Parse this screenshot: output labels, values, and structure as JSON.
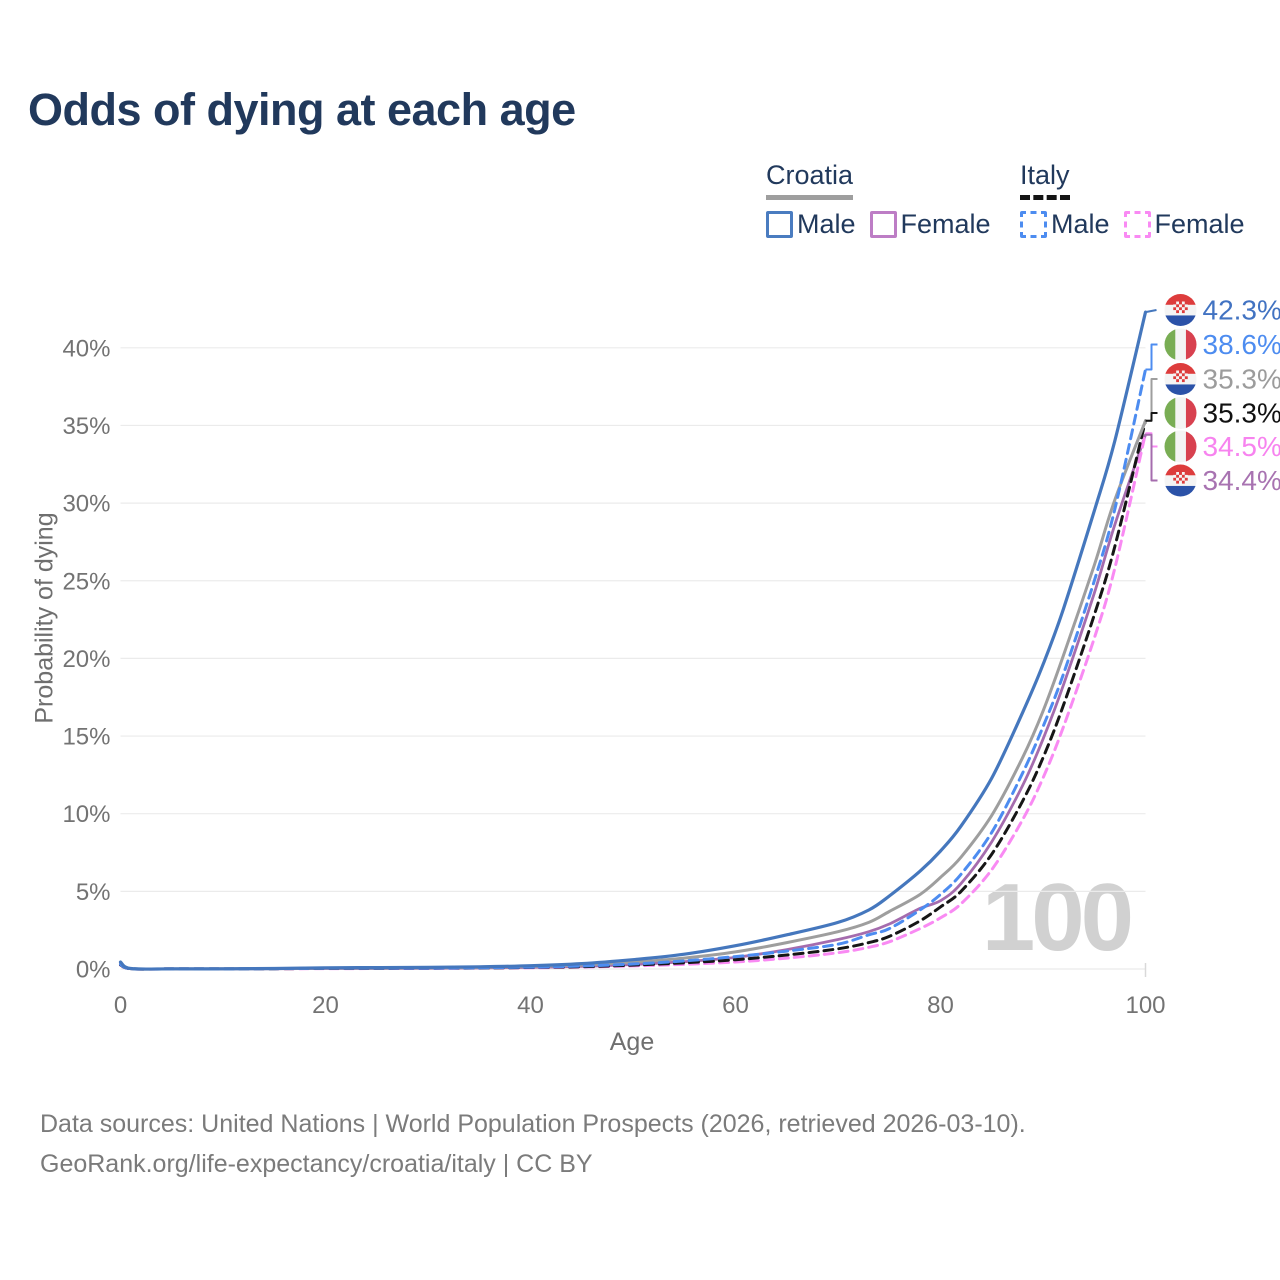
{
  "title": "Odds of dying at each age",
  "watermark": "100",
  "legend": {
    "groups": [
      {
        "country": "Croatia",
        "underline_style": "solid",
        "underline_color": "#9e9e9e",
        "items": [
          {
            "label": "Male",
            "color": "#4a7cc0",
            "dashed": false
          },
          {
            "label": "Female",
            "color": "#bd7dc5",
            "dashed": false
          }
        ]
      },
      {
        "country": "Italy",
        "underline_style": "dashed",
        "underline_color": "#141414",
        "items": [
          {
            "label": "Male",
            "color": "#4d8cf0",
            "dashed": true
          },
          {
            "label": "Female",
            "color": "#f98af3",
            "dashed": true
          }
        ]
      }
    ]
  },
  "footer": {
    "line1": "Data sources: United Nations | World Population Prospects (2026, retrieved 2026-03-10).",
    "line2": "GeoRank.org/life-expectancy/croatia/italy | CC BY"
  },
  "chart_data": {
    "type": "line",
    "title": "Odds of dying at each age",
    "xlabel": "Age",
    "ylabel": "Probability of dying",
    "xlim": [
      0,
      100
    ],
    "ylim": [
      0,
      42.5
    ],
    "x_ticks": [
      0,
      20,
      40,
      60,
      80,
      100
    ],
    "y_ticks": [
      0,
      5,
      10,
      15,
      20,
      25,
      30,
      35,
      40
    ],
    "y_tick_suffix": "%",
    "grid": "horizontal",
    "legend_position": "top-right",
    "age_marker": 100,
    "x": [
      0,
      1,
      5,
      10,
      15,
      20,
      25,
      30,
      35,
      40,
      45,
      50,
      55,
      60,
      65,
      70,
      73,
      75,
      78,
      80,
      82,
      85,
      88,
      90,
      92,
      95,
      97,
      100
    ],
    "series": [
      {
        "name": "Croatia Male",
        "flag": "croatia",
        "color": "#4577bd",
        "dash": null,
        "width": 3.2,
        "end_value": 42.3,
        "end_label": "42.3%",
        "label_color": "#4273c2",
        "values": [
          0.45,
          0.03,
          0.01,
          0.012,
          0.035,
          0.08,
          0.09,
          0.1,
          0.14,
          0.21,
          0.35,
          0.6,
          0.95,
          1.5,
          2.2,
          3.0,
          3.8,
          4.7,
          6.3,
          7.6,
          9.2,
          12.3,
          16.5,
          19.6,
          23.2,
          29.5,
          34.0,
          42.3
        ]
      },
      {
        "name": "Italy Male",
        "flag": "italy",
        "color": "#4d8cf0",
        "dash": "9 6",
        "width": 3,
        "end_value": 38.6,
        "end_label": "38.6%",
        "label_color": "#4d8cf0",
        "values": [
          0.3,
          0.02,
          0.008,
          0.009,
          0.025,
          0.05,
          0.055,
          0.06,
          0.08,
          0.12,
          0.19,
          0.32,
          0.52,
          0.8,
          1.15,
          1.6,
          2.2,
          2.6,
          3.8,
          4.8,
          6.1,
          8.8,
          12.6,
          15.6,
          19.0,
          25.0,
          29.6,
          38.6
        ]
      },
      {
        "name": "Croatia Total",
        "flag": "croatia",
        "color": "#9e9e9e",
        "dash": null,
        "width": 3,
        "end_value": 35.3,
        "end_label": "35.3%",
        "label_color": "#9c9c9c",
        "values": [
          0.42,
          0.025,
          0.009,
          0.01,
          0.028,
          0.055,
          0.06,
          0.07,
          0.1,
          0.16,
          0.26,
          0.44,
          0.7,
          1.1,
          1.7,
          2.4,
          3.0,
          3.7,
          4.8,
          5.9,
          7.2,
          9.9,
          13.6,
          16.6,
          20.2,
          26.0,
          30.2,
          35.3
        ]
      },
      {
        "name": "Italy Total",
        "flag": "italy",
        "color": "#161616",
        "dash": "9 6",
        "width": 3,
        "end_value": 35.3,
        "end_label": "35.3%",
        "label_color": "#111111",
        "values": [
          0.27,
          0.018,
          0.007,
          0.008,
          0.02,
          0.038,
          0.04,
          0.05,
          0.065,
          0.1,
          0.15,
          0.25,
          0.4,
          0.6,
          0.9,
          1.3,
          1.7,
          2.1,
          3.1,
          4.0,
          5.0,
          7.4,
          10.8,
          13.6,
          17.0,
          22.8,
          27.2,
          35.3
        ]
      },
      {
        "name": "Italy Female",
        "flag": "italy",
        "color": "#f98af3",
        "dash": "9 6",
        "width": 3,
        "end_value": 34.5,
        "end_label": "34.5%",
        "label_color": "#f783ef",
        "values": [
          0.25,
          0.016,
          0.006,
          0.007,
          0.015,
          0.025,
          0.03,
          0.04,
          0.055,
          0.08,
          0.12,
          0.2,
          0.3,
          0.45,
          0.7,
          1.05,
          1.4,
          1.75,
          2.6,
          3.3,
          4.2,
          6.4,
          9.6,
          12.3,
          15.6,
          21.3,
          25.8,
          34.5
        ]
      },
      {
        "name": "Croatia Female",
        "flag": "croatia",
        "color": "#a56cae",
        "dash": null,
        "width": 2.8,
        "end_value": 34.4,
        "end_label": "34.4%",
        "label_color": "#a873b1",
        "values": [
          0.38,
          0.02,
          0.008,
          0.009,
          0.02,
          0.032,
          0.035,
          0.045,
          0.065,
          0.1,
          0.17,
          0.29,
          0.47,
          0.75,
          1.25,
          1.9,
          2.4,
          2.9,
          3.9,
          4.4,
          5.5,
          8.2,
          11.8,
          14.8,
          18.3,
          24.2,
          28.6,
          34.4
        ]
      }
    ],
    "flag_colors": {
      "croatia": {
        "red": "#dd3c3c",
        "white": "#f4f4f4",
        "blue": "#2b52a8"
      },
      "italy": {
        "green": "#79ad54",
        "white": "#f4f4f4",
        "red": "#d8414f"
      }
    }
  }
}
